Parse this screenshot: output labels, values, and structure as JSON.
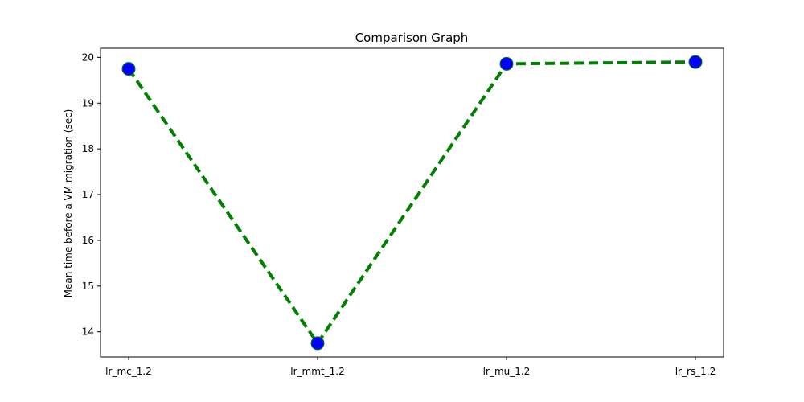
{
  "chart_data": {
    "type": "line",
    "title": "Comparison Graph",
    "xlabel": "",
    "ylabel": "Mean time before a VM migration (sec)",
    "categories": [
      "lr_mc_1.2",
      "lr_mmt_1.2",
      "lr_mu_1.2",
      "lr_rs_1.2"
    ],
    "series": [
      {
        "values": [
          19.75,
          13.75,
          19.86,
          19.9
        ]
      }
    ],
    "ylim": [
      13.45,
      20.2
    ],
    "yticks": [
      14,
      15,
      16,
      17,
      18,
      19,
      20
    ],
    "grid": false,
    "line_color": "#008000",
    "line_style": "dashed",
    "marker_color": "#0000ff"
  }
}
